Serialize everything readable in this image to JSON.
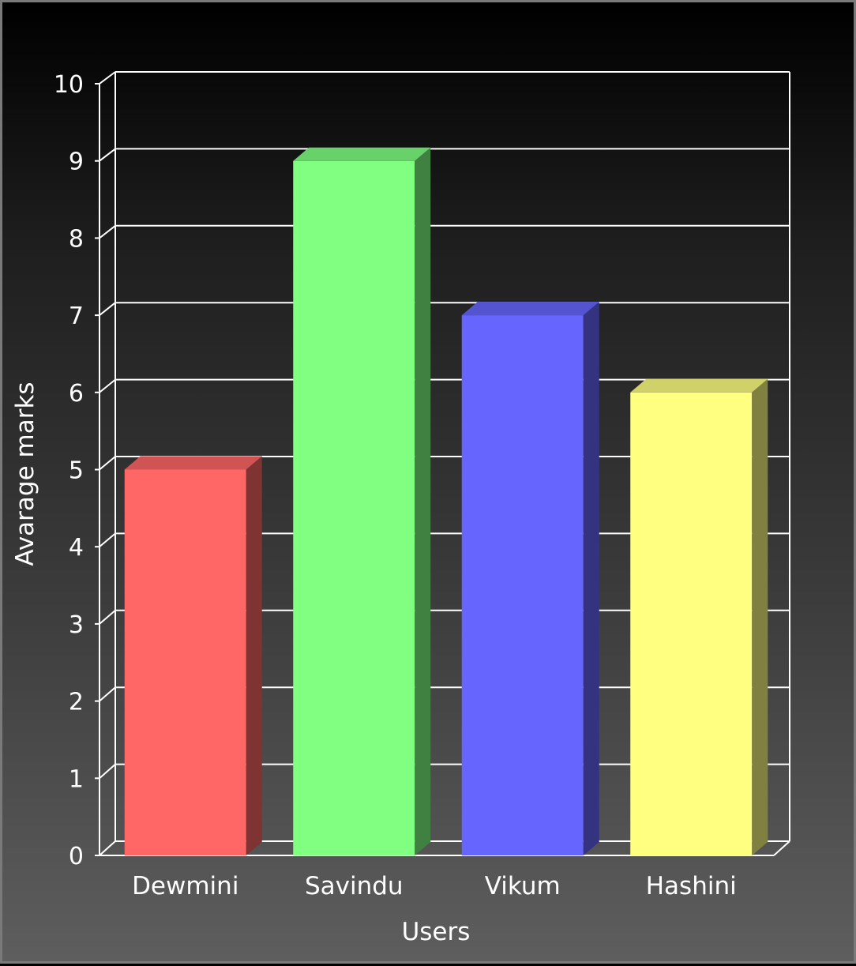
{
  "chart_data": {
    "type": "bar",
    "style": "3d",
    "categories": [
      "Dewmini",
      "Savindu",
      "Vikum",
      "Hashini"
    ],
    "values": [
      5,
      9,
      7,
      6
    ],
    "colors": [
      "#ff6666",
      "#80ff80",
      "#6666ff",
      "#ffff80"
    ],
    "title": "",
    "xlabel": "Users",
    "ylabel": "Avarage marks",
    "ylim": [
      0,
      10
    ],
    "yticks": [
      0,
      1,
      2,
      3,
      4,
      5,
      6,
      7,
      8,
      9,
      10
    ],
    "grid": true,
    "legend": "none"
  },
  "colors": {
    "grid": "#ffffff",
    "text": "#ffffff",
    "background_top": "#000000",
    "background_bottom": "#5e5e5e",
    "border": "#7a7a7a"
  }
}
